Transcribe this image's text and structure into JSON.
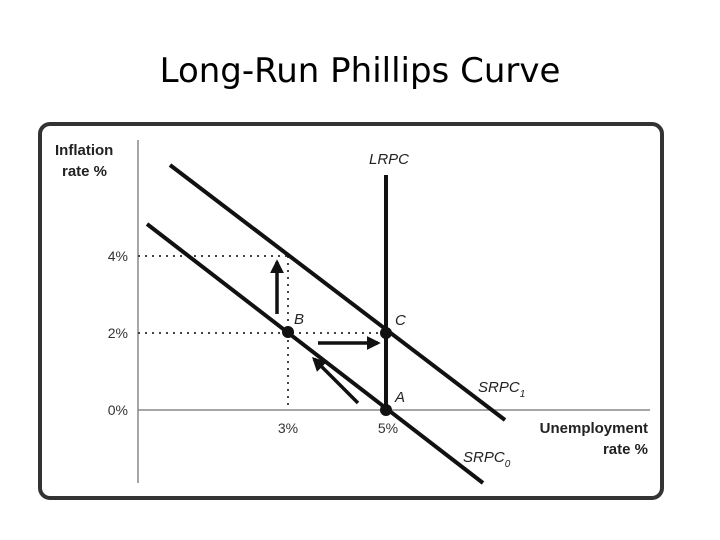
{
  "slide": {
    "title": "Long-Run Phillips Curve"
  },
  "diagram": {
    "y_axis_label": [
      "Inflation",
      "rate %"
    ],
    "x_axis_label": [
      "Unemployment",
      "rate %"
    ],
    "y_ticks": [
      "4%",
      "2%",
      "0%"
    ],
    "x_ticks": [
      "3%",
      "5%"
    ],
    "curves": {
      "lrpc": "LRPC",
      "srpc1": {
        "text": "SRPC",
        "subscript": "1"
      },
      "srpc0": {
        "text": "SRPC",
        "subscript": "0"
      }
    },
    "points": [
      "B",
      "C",
      "A"
    ]
  }
}
